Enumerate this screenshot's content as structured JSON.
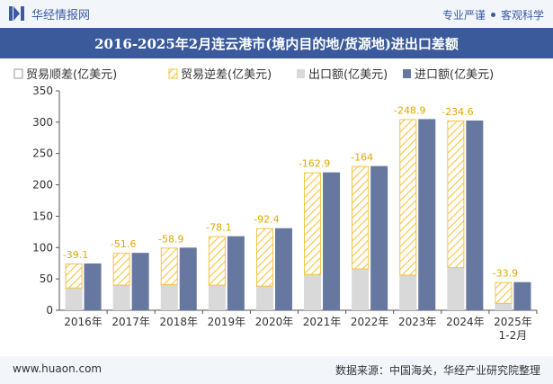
{
  "header": {
    "brand": "华经情报网",
    "tagline_left": "专业严谨",
    "tagline_right": "客观科学",
    "accent_color": "#3a5a9c"
  },
  "title": "2016-2025年2月连云港市(境内目的地/货源地)进出口差额",
  "footer": {
    "url": "www.huaon.com",
    "source": "数据来源：中国海关，华经产业研究院整理"
  },
  "chart_data": {
    "type": "bar",
    "categories": [
      "2016年",
      "2017年",
      "2018年",
      "2019年",
      "2020年",
      "2021年",
      "2022年",
      "2023年",
      "2024年",
      "2025年\n1-2月"
    ],
    "ylim": [
      0,
      350
    ],
    "yticks": [
      0,
      50,
      100,
      150,
      200,
      250,
      300,
      350
    ],
    "grid": false,
    "legend_position": "top-left",
    "series": [
      {
        "name": "贸易顺差(亿美元)",
        "type": "stacked-segment",
        "color": "#ffffff",
        "values": [
          0,
          0,
          0,
          0,
          0,
          0,
          0,
          0,
          0,
          0
        ]
      },
      {
        "name": "贸易逆差(亿美元)",
        "type": "stacked-segment",
        "color": "#f5c441",
        "values": [
          -39.1,
          -51.6,
          -58.9,
          -78.1,
          -92.4,
          -162.9,
          -164,
          -248.9,
          -234.6,
          -33.9
        ],
        "labels": [
          "-39.1",
          "-51.6",
          "-58.9",
          "-78.1",
          "-92.4",
          "-162.9",
          "-164",
          "-248.9",
          "-234.6",
          "-33.9"
        ]
      },
      {
        "name": "出口额(亿美元)",
        "type": "bar",
        "color": "#d9d9d9",
        "values": [
          35.5,
          40,
          41,
          40,
          38.5,
          57,
          66,
          56,
          68,
          11
        ]
      },
      {
        "name": "进口额(亿美元)",
        "type": "bar",
        "color": "#6677a0",
        "values": [
          74.6,
          91.6,
          99.9,
          118.1,
          130.9,
          219.9,
          230,
          304.9,
          302.6,
          44.9
        ]
      }
    ]
  }
}
